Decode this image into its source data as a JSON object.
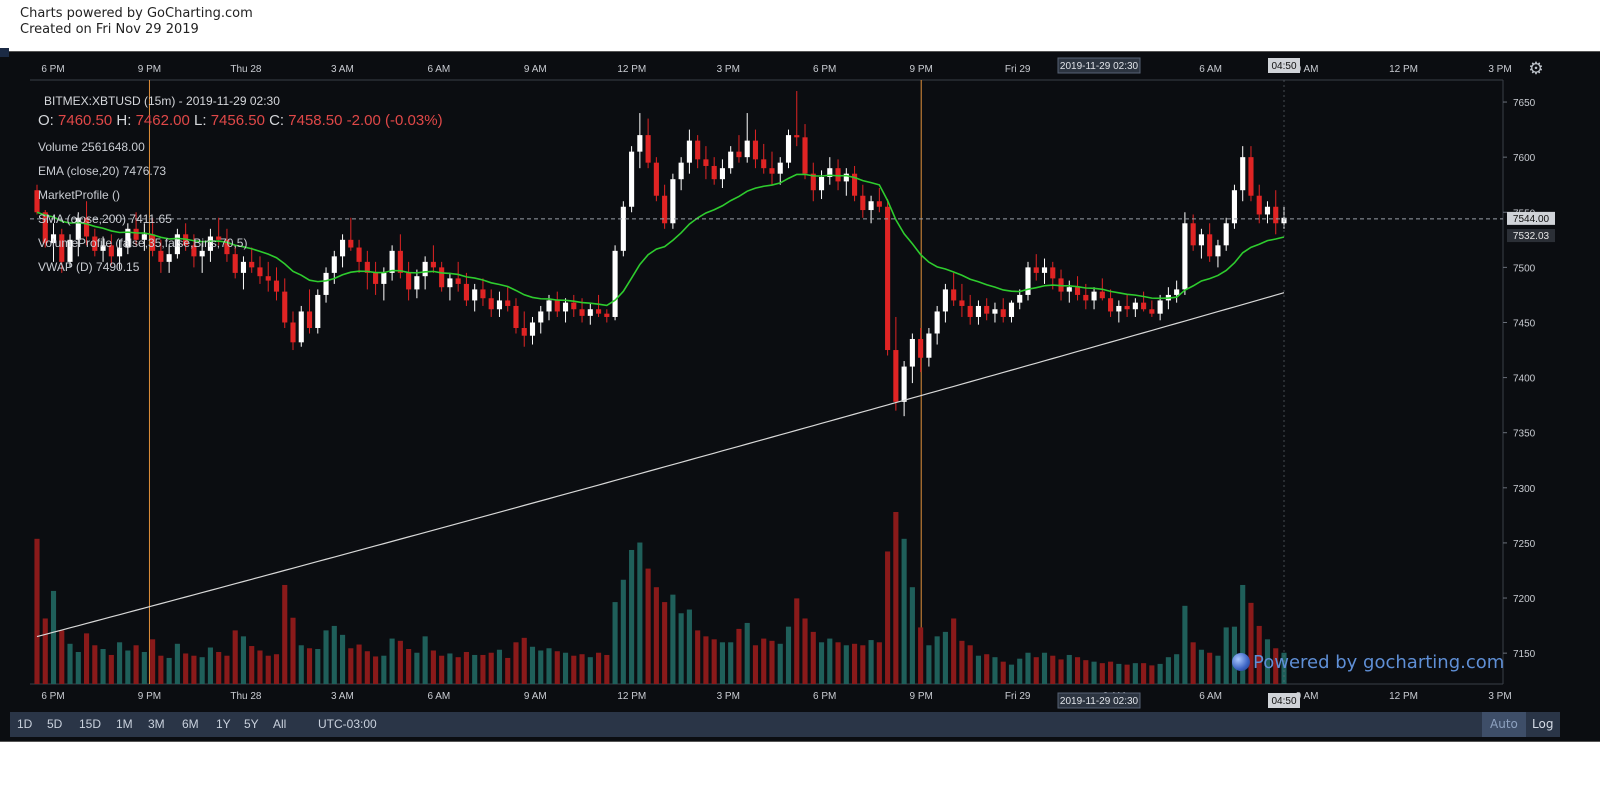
{
  "credit": {
    "line1": "Charts powered by GoCharting.com",
    "line2": "Created on Fri Nov 29 2019"
  },
  "colors": {
    "background": "#0b0d11",
    "up": "#ffffff",
    "down": "#e02424",
    "vol_up": "#1f5f5a",
    "vol_down": "#8a1a1a",
    "ema": "#2ecc2e",
    "sma": "#d8d8d8",
    "vline": "#e0903a",
    "axis_text": "#c9ccd2"
  },
  "legend": {
    "title": "BITMEX:XBTUSD (15m) - 2019-11-29 02:30",
    "o_label": "O:",
    "o": "7460.50",
    "h_label": "H:",
    "h": "7462.00",
    "l_label": "L:",
    "l": "7456.50",
    "c_label": "C:",
    "c": "7458.50",
    "chg": "-2.00",
    "chg_pct": "(-0.03%)",
    "volume_label": "Volume",
    "volume": "2561648.00",
    "ema_label": "EMA (close,20)",
    "ema": "7476.73",
    "mp_label": "MarketProfile ()",
    "sma_label": "SMA (close,200)",
    "sma": "7411.65",
    "vp_label": "VolumeProfile (false,35,false,Bins,70,5)",
    "vwap_label": "VWAP (D)",
    "vwap": "7490.15"
  },
  "chart_data": {
    "type": "candlestick",
    "symbol": "BITMEX:XBTUSD",
    "interval": "15m",
    "x_ticks": [
      "6 PM",
      "9 PM",
      "Thu 28",
      "3 AM",
      "6 AM",
      "9 AM",
      "12 PM",
      "3 PM",
      "6 PM",
      "9 PM",
      "Fri 29",
      "3 AM",
      "6 AM",
      "9 AM",
      "12 PM",
      "3 PM"
    ],
    "y_ticks": [
      7150,
      7200,
      7250,
      7300,
      7350,
      7400,
      7450,
      7500,
      7550,
      7600,
      7650
    ],
    "ylim": [
      7122,
      7670
    ],
    "crosshair_time_label": "2019-11-29 02:30",
    "cursor_time_label": "04:50",
    "price_line": {
      "value": 7544.0,
      "label": "7544.00"
    },
    "ema_last": {
      "value": 7532.03,
      "label": "7532.03"
    },
    "candles": [
      [
        7570,
        7575,
        7548,
        7550
      ],
      [
        7550,
        7552,
        7518,
        7522
      ],
      [
        7522,
        7540,
        7505,
        7530
      ],
      [
        7530,
        7535,
        7495,
        7505
      ],
      [
        7505,
        7530,
        7500,
        7525
      ],
      [
        7525,
        7550,
        7510,
        7545
      ],
      [
        7545,
        7560,
        7520,
        7528
      ],
      [
        7528,
        7535,
        7510,
        7515
      ],
      [
        7515,
        7528,
        7505,
        7520
      ],
      [
        7520,
        7530,
        7502,
        7510
      ],
      [
        7510,
        7525,
        7498,
        7518
      ],
      [
        7518,
        7540,
        7512,
        7535
      ],
      [
        7535,
        7550,
        7520,
        7525
      ],
      [
        7525,
        7540,
        7515,
        7530
      ],
      [
        7530,
        7545,
        7510,
        7515
      ],
      [
        7515,
        7525,
        7495,
        7505
      ],
      [
        7505,
        7520,
        7495,
        7512
      ],
      [
        7512,
        7535,
        7508,
        7530
      ],
      [
        7530,
        7540,
        7515,
        7520
      ],
      [
        7520,
        7530,
        7500,
        7510
      ],
      [
        7510,
        7522,
        7495,
        7515
      ],
      [
        7515,
        7535,
        7505,
        7528
      ],
      [
        7528,
        7545,
        7520,
        7525
      ],
      [
        7525,
        7535,
        7505,
        7512
      ],
      [
        7512,
        7520,
        7490,
        7495
      ],
      [
        7495,
        7510,
        7480,
        7505
      ],
      [
        7505,
        7518,
        7495,
        7500
      ],
      [
        7500,
        7510,
        7485,
        7492
      ],
      [
        7492,
        7505,
        7478,
        7488
      ],
      [
        7488,
        7500,
        7470,
        7478
      ],
      [
        7478,
        7490,
        7445,
        7450
      ],
      [
        7450,
        7460,
        7425,
        7432
      ],
      [
        7432,
        7465,
        7428,
        7460
      ],
      [
        7460,
        7480,
        7440,
        7445
      ],
      [
        7445,
        7480,
        7440,
        7475
      ],
      [
        7475,
        7500,
        7468,
        7495
      ],
      [
        7495,
        7515,
        7485,
        7510
      ],
      [
        7510,
        7530,
        7500,
        7525
      ],
      [
        7525,
        7545,
        7515,
        7518
      ],
      [
        7518,
        7525,
        7495,
        7505
      ],
      [
        7505,
        7515,
        7480,
        7495
      ],
      [
        7495,
        7505,
        7475,
        7485
      ],
      [
        7485,
        7500,
        7470,
        7495
      ],
      [
        7495,
        7520,
        7488,
        7515
      ],
      [
        7515,
        7530,
        7490,
        7495
      ],
      [
        7495,
        7505,
        7470,
        7480
      ],
      [
        7480,
        7498,
        7472,
        7492
      ],
      [
        7492,
        7510,
        7480,
        7505
      ],
      [
        7505,
        7520,
        7495,
        7500
      ],
      [
        7500,
        7505,
        7478,
        7482
      ],
      [
        7482,
        7495,
        7470,
        7490
      ],
      [
        7490,
        7505,
        7478,
        7485
      ],
      [
        7485,
        7495,
        7465,
        7470
      ],
      [
        7470,
        7485,
        7460,
        7480
      ],
      [
        7480,
        7490,
        7465,
        7472
      ],
      [
        7472,
        7480,
        7455,
        7462
      ],
      [
        7462,
        7478,
        7455,
        7470
      ],
      [
        7470,
        7482,
        7460,
        7465
      ],
      [
        7465,
        7472,
        7440,
        7445
      ],
      [
        7445,
        7460,
        7428,
        7438
      ],
      [
        7438,
        7455,
        7430,
        7450
      ],
      [
        7450,
        7465,
        7440,
        7460
      ],
      [
        7460,
        7475,
        7452,
        7470
      ],
      [
        7470,
        7478,
        7455,
        7460
      ],
      [
        7460,
        7472,
        7450,
        7468
      ],
      [
        7468,
        7475,
        7455,
        7462
      ],
      [
        7462,
        7472,
        7450,
        7456
      ],
      [
        7456,
        7468,
        7448,
        7462
      ],
      [
        7462,
        7475,
        7455,
        7458
      ],
      [
        7458,
        7462,
        7450,
        7455
      ],
      [
        7455,
        7520,
        7452,
        7515
      ],
      [
        7515,
        7560,
        7510,
        7555
      ],
      [
        7555,
        7610,
        7550,
        7605
      ],
      [
        7605,
        7640,
        7590,
        7620
      ],
      [
        7620,
        7635,
        7590,
        7595
      ],
      [
        7595,
        7600,
        7560,
        7565
      ],
      [
        7565,
        7575,
        7535,
        7540
      ],
      [
        7540,
        7585,
        7535,
        7580
      ],
      [
        7580,
        7600,
        7570,
        7595
      ],
      [
        7595,
        7625,
        7585,
        7615
      ],
      [
        7615,
        7620,
        7590,
        7598
      ],
      [
        7598,
        7610,
        7580,
        7592
      ],
      [
        7592,
        7600,
        7575,
        7580
      ],
      [
        7580,
        7598,
        7572,
        7590
      ],
      [
        7590,
        7610,
        7585,
        7605
      ],
      [
        7605,
        7620,
        7595,
        7600
      ],
      [
        7600,
        7640,
        7595,
        7615
      ],
      [
        7615,
        7625,
        7590,
        7598
      ],
      [
        7598,
        7612,
        7585,
        7590
      ],
      [
        7590,
        7605,
        7575,
        7585
      ],
      [
        7585,
        7600,
        7575,
        7595
      ],
      [
        7595,
        7625,
        7590,
        7620
      ],
      [
        7620,
        7660,
        7610,
        7618
      ],
      [
        7618,
        7630,
        7580,
        7585
      ],
      [
        7585,
        7595,
        7560,
        7570
      ],
      [
        7570,
        7588,
        7562,
        7582
      ],
      [
        7582,
        7600,
        7575,
        7590
      ],
      [
        7590,
        7598,
        7570,
        7578
      ],
      [
        7578,
        7590,
        7565,
        7585
      ],
      [
        7585,
        7592,
        7560,
        7565
      ],
      [
        7565,
        7575,
        7545,
        7552
      ],
      [
        7552,
        7565,
        7540,
        7560
      ],
      [
        7560,
        7572,
        7550,
        7555
      ],
      [
        7555,
        7562,
        7420,
        7425
      ],
      [
        7425,
        7455,
        7370,
        7378
      ],
      [
        7378,
        7415,
        7365,
        7410
      ],
      [
        7410,
        7440,
        7395,
        7435
      ],
      [
        7435,
        7445,
        7405,
        7418
      ],
      [
        7418,
        7445,
        7410,
        7440
      ],
      [
        7440,
        7465,
        7430,
        7460
      ],
      [
        7460,
        7485,
        7450,
        7480
      ],
      [
        7480,
        7495,
        7465,
        7470
      ],
      [
        7470,
        7485,
        7455,
        7465
      ],
      [
        7465,
        7475,
        7448,
        7455
      ],
      [
        7455,
        7470,
        7448,
        7465
      ],
      [
        7465,
        7472,
        7452,
        7458
      ],
      [
        7458,
        7468,
        7450,
        7462
      ],
      [
        7462,
        7472,
        7450,
        7455
      ],
      [
        7455,
        7470,
        7450,
        7468
      ],
      [
        7468,
        7480,
        7462,
        7475
      ],
      [
        7475,
        7505,
        7470,
        7500
      ],
      [
        7500,
        7512,
        7488,
        7495
      ],
      [
        7495,
        7508,
        7485,
        7500
      ],
      [
        7500,
        7505,
        7480,
        7490
      ],
      [
        7490,
        7498,
        7470,
        7478
      ],
      [
        7478,
        7488,
        7468,
        7482
      ],
      [
        7482,
        7492,
        7470,
        7475
      ],
      [
        7475,
        7485,
        7462,
        7470
      ],
      [
        7470,
        7482,
        7462,
        7478
      ],
      [
        7478,
        7490,
        7470,
        7472
      ],
      [
        7472,
        7480,
        7455,
        7460
      ],
      [
        7460,
        7470,
        7450,
        7465
      ],
      [
        7465,
        7475,
        7455,
        7462
      ],
      [
        7462,
        7472,
        7455,
        7468
      ],
      [
        7468,
        7478,
        7460,
        7462
      ],
      [
        7462,
        7470,
        7455,
        7458
      ],
      [
        7458,
        7475,
        7452,
        7470
      ],
      [
        7470,
        7482,
        7462,
        7475
      ],
      [
        7475,
        7488,
        7468,
        7480
      ],
      [
        7480,
        7550,
        7475,
        7540
      ],
      [
        7540,
        7548,
        7515,
        7520
      ],
      [
        7520,
        7535,
        7508,
        7530
      ],
      [
        7530,
        7540,
        7505,
        7510
      ],
      [
        7510,
        7525,
        7500,
        7520
      ],
      [
        7520,
        7545,
        7515,
        7540
      ],
      [
        7540,
        7575,
        7535,
        7570
      ],
      [
        7570,
        7610,
        7560,
        7600
      ],
      [
        7600,
        7610,
        7560,
        7565
      ],
      [
        7565,
        7575,
        7540,
        7548
      ],
      [
        7548,
        7560,
        7540,
        7555
      ],
      [
        7555,
        7570,
        7530,
        7540
      ],
      [
        7540,
        7555,
        7535,
        7545
      ]
    ],
    "volume": [
      1950000,
      880000,
      1250000,
      720000,
      540000,
      430000,
      680000,
      520000,
      470000,
      390000,
      560000,
      450000,
      520000,
      430000,
      600000,
      380000,
      350000,
      540000,
      410000,
      380000,
      360000,
      490000,
      430000,
      380000,
      720000,
      640000,
      510000,
      450000,
      380000,
      400000,
      1330000,
      890000,
      520000,
      480000,
      470000,
      720000,
      780000,
      660000,
      480000,
      530000,
      440000,
      370000,
      380000,
      610000,
      580000,
      470000,
      420000,
      640000,
      450000,
      380000,
      410000,
      360000,
      430000,
      390000,
      390000,
      420000,
      460000,
      350000,
      560000,
      620000,
      500000,
      450000,
      480000,
      440000,
      420000,
      380000,
      400000,
      360000,
      420000,
      390000,
      1100000,
      1400000,
      1800000,
      1900000,
      1550000,
      1300000,
      1100000,
      1200000,
      950000,
      1000000,
      720000,
      640000,
      600000,
      560000,
      560000,
      740000,
      820000,
      520000,
      610000,
      580000,
      540000,
      770000,
      1150000,
      880000,
      700000,
      560000,
      610000,
      560000,
      520000,
      540000,
      520000,
      590000,
      560000,
      1780000,
      2310000,
      1950000,
      1300000,
      760000,
      520000,
      640000,
      700000,
      880000,
      580000,
      520000,
      380000,
      400000,
      360000,
      300000,
      260000,
      340000,
      420000,
      360000,
      420000,
      380000,
      330000,
      390000,
      360000,
      320000,
      300000,
      280000,
      300000,
      270000,
      260000,
      280000,
      280000,
      250000,
      270000,
      360000,
      400000,
      1050000,
      560000,
      460000,
      420000,
      380000,
      760000,
      770000,
      1330000,
      1090000,
      780000,
      600000,
      480000,
      420000
    ],
    "vlines_at": [
      "9 PM",
      "9 PM (Thu 28)"
    ],
    "axis_labels_bottom": [
      "6 PM",
      "9 PM",
      "Thu 28",
      "3 AM",
      "6 AM",
      "9 AM",
      "12 PM",
      "3 PM",
      "6 PM",
      "9 PM",
      "Fri 29",
      "3 AM",
      "6 AM",
      "9 AM",
      "12 PM",
      "3 PM"
    ]
  },
  "toolbar": {
    "ranges": [
      "1D",
      "5D",
      "15D",
      "1M",
      "3M",
      "6M",
      "1Y",
      "5Y",
      "All"
    ],
    "timezone": "UTC-03:00",
    "auto": "Auto",
    "log": "Log"
  },
  "watermark": "Powered by gocharting.com",
  "icons": {
    "settings": "gear-icon"
  }
}
